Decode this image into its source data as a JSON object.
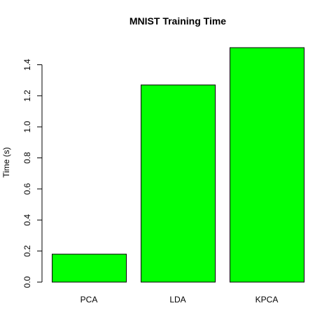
{
  "chart_data": {
    "type": "bar",
    "title": "MNIST Training Time",
    "xlabel": "",
    "ylabel": "Time (s)",
    "categories": [
      "PCA",
      "LDA",
      "KPCA"
    ],
    "values": [
      0.18,
      1.27,
      1.51
    ],
    "ylim": [
      0,
      1.56
    ],
    "yticks": [
      0.0,
      0.2,
      0.4,
      0.6,
      0.8,
      1.0,
      1.2,
      1.4
    ],
    "ytick_labels": [
      "0.0",
      "0.2",
      "0.4",
      "0.6",
      "0.8",
      "1.0",
      "1.2",
      "1.4"
    ],
    "bar_color": "#00ff00",
    "border_color": "#000000",
    "grid": false,
    "legend": "none"
  }
}
